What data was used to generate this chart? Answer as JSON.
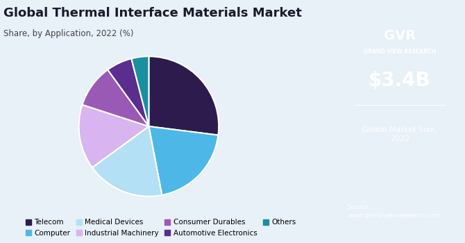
{
  "title": "Global Thermal Interface Materials Market",
  "subtitle": "Share, by Application, 2022 (%)",
  "labels": [
    "Telecom",
    "Computer",
    "Medical Devices",
    "Industrial Machinery",
    "Consumer Durables",
    "Automotive Electronics",
    "Others"
  ],
  "values": [
    27,
    20,
    18,
    15,
    10,
    6,
    4
  ],
  "colors": [
    "#2d1b4e",
    "#4db8e8",
    "#b3e0f5",
    "#d8b4f0",
    "#9b59b6",
    "#5b2d8e",
    "#1a8fa0"
  ],
  "startangle": 90,
  "bg_color": "#e8f0f8",
  "right_panel_color": "#2d1b4e",
  "market_size": "$3.4B",
  "market_label": "Global Market Size,\n2022",
  "source_text": "Source:\nwww.grandviewresearch.com"
}
